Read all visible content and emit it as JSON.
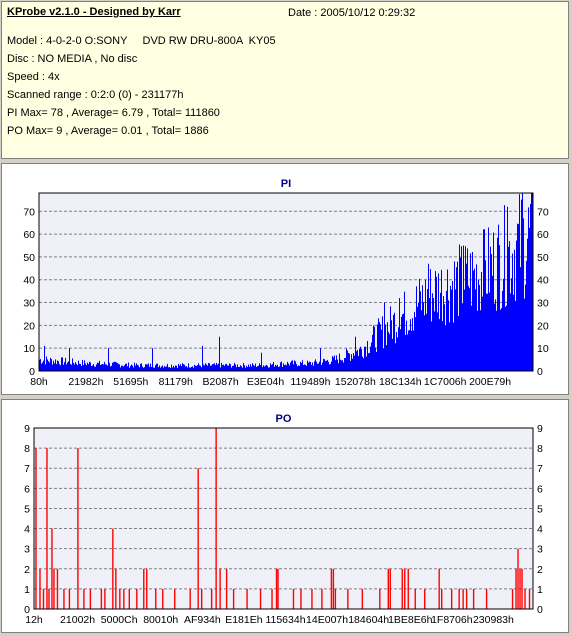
{
  "header": {
    "title": "KProbe v2.1.0 - Designed by Karr",
    "date": "Date : 2005/10/12 0:29:32",
    "lines": [
      "Model : 4-0-2-0 O:SONY     DVD RW DRU-800A  KY05",
      "Disc : NO MEDIA , No disc",
      "Speed : 4x",
      "Scanned range : 0:2:0 (0) - 231177h",
      "PI Max= 78 , Average= 6.79 , Total= 111860",
      "PO Max= 9 , Average= 0.01 , Total= 1886"
    ]
  },
  "chart_data": [
    {
      "type": "bar",
      "title": "PI",
      "color": "#0000ff",
      "ylim": [
        0,
        78
      ],
      "yticks": [
        0,
        10,
        20,
        30,
        40,
        50,
        60,
        70
      ],
      "xtick_labels": [
        "80h",
        "21982h",
        "51695h",
        "81179h",
        "B2087h",
        "E3E04h",
        "119489h",
        "152078h",
        "18C134h",
        "1C7006h",
        "200E79h"
      ],
      "grid": true,
      "note_max": 78,
      "profile": [
        [
          0,
          6
        ],
        [
          5,
          5
        ],
        [
          10,
          4
        ],
        [
          20,
          3
        ],
        [
          30,
          3
        ],
        [
          35,
          3
        ],
        [
          40,
          3
        ],
        [
          45,
          3
        ],
        [
          50,
          4
        ],
        [
          55,
          4
        ],
        [
          60,
          6
        ],
        [
          65,
          11
        ],
        [
          70,
          22
        ],
        [
          75,
          32
        ],
        [
          80,
          42
        ],
        [
          85,
          47
        ],
        [
          90,
          52
        ],
        [
          95,
          62
        ],
        [
          100,
          72
        ]
      ],
      "peaks": [
        [
          1,
          11
        ],
        [
          6,
          10
        ],
        [
          14,
          10
        ],
        [
          23,
          10
        ],
        [
          33,
          11
        ],
        [
          36.5,
          15
        ],
        [
          45,
          8
        ],
        [
          57,
          10
        ],
        [
          64,
          15
        ],
        [
          70,
          30
        ],
        [
          73,
          32
        ],
        [
          79,
          47
        ],
        [
          86,
          55
        ],
        [
          90,
          62
        ],
        [
          95,
          72
        ],
        [
          98,
          78
        ]
      ]
    },
    {
      "type": "bar",
      "title": "PO",
      "color": "#ff0000",
      "ylim": [
        0,
        9
      ],
      "yticks": [
        0,
        1,
        2,
        3,
        4,
        5,
        6,
        7,
        8,
        9
      ],
      "xtick_labels": [
        "12h",
        "21002h",
        "5000Ch",
        "80010h",
        "AF934h",
        "E181Eh",
        "115634h",
        "14E007h",
        "184604h",
        "1BE8E6h",
        "1F8706h",
        "230983h"
      ],
      "grid": true,
      "bars": [
        [
          0.4,
          8
        ],
        [
          1.2,
          2
        ],
        [
          1.9,
          1
        ],
        [
          2.6,
          8
        ],
        [
          3.0,
          1
        ],
        [
          3.6,
          4
        ],
        [
          4.0,
          2
        ],
        [
          4.7,
          2
        ],
        [
          6.0,
          1
        ],
        [
          7.1,
          1
        ],
        [
          8.8,
          8
        ],
        [
          10.0,
          1
        ],
        [
          11.3,
          1
        ],
        [
          13.5,
          1
        ],
        [
          14.2,
          1
        ],
        [
          15.8,
          4
        ],
        [
          16.4,
          2
        ],
        [
          17.2,
          1
        ],
        [
          18.0,
          1
        ],
        [
          19.1,
          1
        ],
        [
          20.6,
          1
        ],
        [
          22.0,
          2
        ],
        [
          22.6,
          2
        ],
        [
          24.4,
          1
        ],
        [
          25.8,
          1
        ],
        [
          28.2,
          1
        ],
        [
          31.3,
          1
        ],
        [
          32.9,
          7
        ],
        [
          33.6,
          1
        ],
        [
          35.6,
          1
        ],
        [
          36.5,
          9
        ],
        [
          37.3,
          2
        ],
        [
          38.6,
          2
        ],
        [
          40.0,
          1
        ],
        [
          42.7,
          1
        ],
        [
          45.4,
          1
        ],
        [
          47.7,
          1
        ],
        [
          48.6,
          2
        ],
        [
          48.9,
          2
        ],
        [
          52.0,
          1
        ],
        [
          53.5,
          1
        ],
        [
          55.7,
          1
        ],
        [
          57.7,
          1
        ],
        [
          59.6,
          2
        ],
        [
          60.0,
          2
        ],
        [
          60.4,
          1
        ],
        [
          62.9,
          1
        ],
        [
          65.8,
          1
        ],
        [
          69.3,
          1
        ],
        [
          71.0,
          2
        ],
        [
          71.4,
          2
        ],
        [
          73.8,
          2
        ],
        [
          74.3,
          2
        ],
        [
          75.0,
          2
        ],
        [
          76.4,
          1
        ],
        [
          78.3,
          1
        ],
        [
          81.2,
          2
        ],
        [
          81.7,
          1
        ],
        [
          83.7,
          1
        ],
        [
          85.2,
          1
        ],
        [
          86.0,
          1
        ],
        [
          86.7,
          1
        ],
        [
          88.1,
          1
        ],
        [
          90.7,
          1
        ],
        [
          95.9,
          1
        ],
        [
          96.6,
          2
        ],
        [
          97.0,
          3
        ],
        [
          97.4,
          2
        ],
        [
          97.8,
          2
        ],
        [
          98.4,
          1
        ],
        [
          99.3,
          1
        ]
      ]
    }
  ]
}
